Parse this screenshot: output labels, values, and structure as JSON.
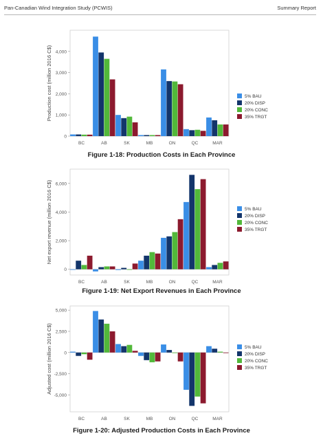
{
  "header": {
    "left": "Pan-Canadian Wind Integration Study (PCWIS)",
    "right": "Summary Report"
  },
  "colors": {
    "5% BAU": "#3a8ee6",
    "20% DISP": "#13356b",
    "20% CONC": "#52b83a",
    "35% TRGT": "#8c1a2e"
  },
  "chart_data": [
    {
      "type": "bar",
      "caption": "Figure 1-18: Production Costs in Each Province",
      "ylabel": "Production cost (million 2016 C$)",
      "categories": [
        "BC",
        "AB",
        "SK",
        "MB",
        "ON",
        "QC",
        "MAR"
      ],
      "ylim": [
        0,
        5000
      ],
      "yticks": [
        0,
        1000,
        2000,
        3000,
        4000
      ],
      "yticklabels": [
        "0",
        "1,000",
        "2,000",
        "3,000",
        "4,000"
      ],
      "legend_position": "right",
      "series": [
        {
          "name": "5% BAU",
          "values": [
            80,
            4700,
            1000,
            50,
            3150,
            330,
            880
          ]
        },
        {
          "name": "20% DISP",
          "values": [
            80,
            3950,
            850,
            50,
            2600,
            280,
            750
          ]
        },
        {
          "name": "20% CONC",
          "values": [
            70,
            3650,
            920,
            50,
            2580,
            300,
            550
          ]
        },
        {
          "name": "35% TRGT",
          "values": [
            70,
            2680,
            650,
            50,
            2450,
            250,
            550
          ]
        }
      ]
    },
    {
      "type": "bar",
      "caption": "Figure 1-19: Net Export Revenues in Each Province",
      "ylabel": "Net export revenue (million 2016 C$)",
      "categories": [
        "BC",
        "AB",
        "SK",
        "MB",
        "ON",
        "QC",
        "MAR"
      ],
      "ylim": [
        -400,
        7000
      ],
      "yticks": [
        0,
        2000,
        4000,
        6000
      ],
      "yticklabels": [
        "0",
        "2,000",
        "4,000",
        "6,000"
      ],
      "legend_position": "right",
      "series": [
        {
          "name": "5% BAU",
          "values": [
            0,
            -150,
            -50,
            600,
            2200,
            4700,
            150
          ]
        },
        {
          "name": "20% DISP",
          "values": [
            600,
            150,
            100,
            950,
            2300,
            6600,
            300
          ]
        },
        {
          "name": "20% CONC",
          "values": [
            300,
            200,
            0,
            1200,
            2600,
            5600,
            450
          ]
        },
        {
          "name": "35% TRGT",
          "values": [
            950,
            200,
            400,
            1100,
            3500,
            6300,
            550
          ]
        }
      ]
    },
    {
      "type": "bar",
      "caption": "Figure 1-20: Adjusted Production Costs in Each Province",
      "ylabel": "Adjusted cost (million 2016 C$)",
      "categories": [
        "BC",
        "AB",
        "SK",
        "MB",
        "ON",
        "QC",
        "MAR"
      ],
      "ylim": [
        -7000,
        5500
      ],
      "yticks": [
        5000,
        2500,
        0,
        -2500,
        -5000
      ],
      "yticklabels": [
        "5,000",
        "2,500",
        "0",
        "-2,500",
        "-5,000"
      ],
      "legend_position": "right",
      "series": [
        {
          "name": "5% BAU",
          "values": [
            100,
            4900,
            1000,
            -400,
            950,
            -4400,
            750
          ]
        },
        {
          "name": "20% DISP",
          "values": [
            -400,
            3900,
            750,
            -900,
            300,
            -6300,
            450
          ]
        },
        {
          "name": "20% CONC",
          "values": [
            -200,
            3400,
            900,
            -1150,
            0,
            -5200,
            100
          ]
        },
        {
          "name": "35% TRGT",
          "values": [
            -850,
            2500,
            200,
            -1050,
            -1050,
            -6000,
            0
          ]
        }
      ]
    }
  ]
}
